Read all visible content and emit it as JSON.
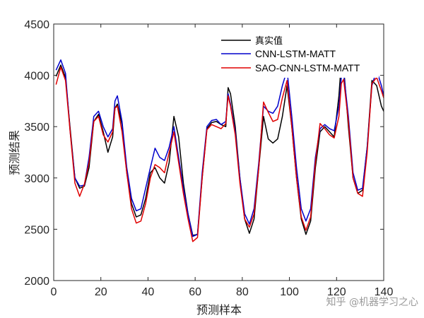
{
  "chart_data": {
    "type": "line",
    "xlabel": "预测样本",
    "ylabel": "预测结果",
    "xlim": [
      0,
      140
    ],
    "ylim": [
      2000,
      4500
    ],
    "xticks": [
      0,
      20,
      40,
      60,
      80,
      100,
      120,
      140
    ],
    "yticks": [
      2000,
      2500,
      3000,
      3500,
      4000,
      4500
    ],
    "grid": false,
    "legend_position": "top-right",
    "colors": {
      "真实值": "#000000",
      "CNN-LSTM-MATT": "#0000cc",
      "SAO-CNN-LSTM-MATT": "#e00000"
    },
    "series": [
      {
        "name": "真实值",
        "x": [
          1,
          3,
          5,
          7,
          9,
          11,
          13,
          15,
          17,
          19,
          21,
          23,
          25,
          26,
          27,
          29,
          31,
          33,
          35,
          37,
          39,
          41,
          43,
          45,
          47,
          49,
          51,
          53,
          55,
          57,
          59,
          61,
          63,
          65,
          67,
          69,
          71,
          73,
          74,
          75,
          77,
          79,
          81,
          83,
          85,
          87,
          89,
          91,
          93,
          95,
          97,
          99,
          101,
          103,
          105,
          107,
          109,
          111,
          113,
          115,
          117,
          119,
          121,
          122,
          123,
          125,
          127,
          129,
          131,
          133,
          135,
          137,
          139,
          140
        ],
        "values": [
          3990,
          4100,
          3980,
          3480,
          3000,
          2900,
          2920,
          3100,
          3550,
          3620,
          3450,
          3250,
          3400,
          3680,
          3720,
          3520,
          3050,
          2750,
          2620,
          2640,
          2800,
          3050,
          3100,
          3000,
          2950,
          3150,
          3600,
          3400,
          2950,
          2650,
          2440,
          2450,
          3000,
          3480,
          3540,
          3550,
          3520,
          3500,
          3880,
          3820,
          3500,
          3000,
          2600,
          2460,
          2600,
          3100,
          3600,
          3380,
          3340,
          3380,
          3600,
          3900,
          3500,
          3000,
          2600,
          2450,
          2580,
          3100,
          3450,
          3500,
          3450,
          3400,
          3800,
          4130,
          4080,
          3500,
          3000,
          2850,
          2880,
          3300,
          3950,
          3900,
          3700,
          3650
        ]
      },
      {
        "name": "CNN-LSTM-MATT",
        "x": [
          1,
          3,
          5,
          7,
          9,
          11,
          13,
          15,
          17,
          19,
          21,
          23,
          25,
          26,
          27,
          29,
          31,
          33,
          35,
          37,
          39,
          41,
          43,
          45,
          47,
          49,
          51,
          53,
          55,
          57,
          59,
          61,
          63,
          65,
          67,
          69,
          71,
          73,
          74,
          75,
          77,
          79,
          81,
          83,
          85,
          87,
          89,
          91,
          93,
          95,
          97,
          99,
          101,
          103,
          105,
          107,
          109,
          111,
          113,
          115,
          117,
          119,
          121,
          122,
          123,
          125,
          127,
          129,
          131,
          133,
          135,
          137,
          139,
          140
        ],
        "values": [
          4050,
          4150,
          4020,
          3450,
          3000,
          2920,
          2930,
          3200,
          3600,
          3650,
          3500,
          3400,
          3480,
          3750,
          3800,
          3550,
          3100,
          2800,
          2680,
          2700,
          2900,
          3100,
          3290,
          3200,
          3170,
          3300,
          3500,
          3200,
          2900,
          2650,
          2430,
          2450,
          3050,
          3500,
          3560,
          3570,
          3520,
          3550,
          3820,
          3720,
          3450,
          3000,
          2650,
          2550,
          2700,
          3150,
          3700,
          3650,
          3630,
          3700,
          3900,
          4050,
          3600,
          3100,
          2700,
          2580,
          2700,
          3200,
          3480,
          3520,
          3480,
          3460,
          3700,
          3980,
          4020,
          3600,
          3050,
          2880,
          2900,
          3300,
          3900,
          4050,
          3900,
          3800
        ]
      },
      {
        "name": "SAO-CNN-LSTM-MATT",
        "x": [
          1,
          3,
          5,
          7,
          9,
          11,
          13,
          15,
          17,
          19,
          21,
          23,
          25,
          26,
          27,
          29,
          31,
          33,
          35,
          37,
          39,
          41,
          43,
          45,
          47,
          49,
          51,
          53,
          55,
          57,
          59,
          61,
          63,
          65,
          67,
          69,
          71,
          73,
          74,
          75,
          77,
          79,
          81,
          83,
          85,
          87,
          89,
          91,
          93,
          95,
          97,
          99,
          101,
          103,
          105,
          107,
          109,
          111,
          113,
          115,
          117,
          119,
          121,
          122,
          123,
          125,
          127,
          129,
          131,
          133,
          135,
          137,
          139,
          140
        ],
        "values": [
          3910,
          4080,
          3950,
          3450,
          2950,
          2820,
          2940,
          3150,
          3550,
          3600,
          3420,
          3350,
          3450,
          3680,
          3700,
          3450,
          3050,
          2700,
          2560,
          2580,
          2750,
          3000,
          3130,
          3100,
          3050,
          3250,
          3450,
          3150,
          2850,
          2600,
          2380,
          2420,
          3000,
          3470,
          3520,
          3500,
          3480,
          3530,
          3800,
          3700,
          3420,
          2950,
          2600,
          2520,
          2650,
          3100,
          3740,
          3640,
          3550,
          3570,
          3780,
          3950,
          3500,
          3000,
          2620,
          2490,
          2620,
          3150,
          3530,
          3480,
          3420,
          3390,
          3600,
          3920,
          3960,
          3550,
          3000,
          2850,
          2820,
          3250,
          3920,
          3980,
          3850,
          3780
        ]
      }
    ]
  },
  "watermark": "知乎 @机器学习之心"
}
